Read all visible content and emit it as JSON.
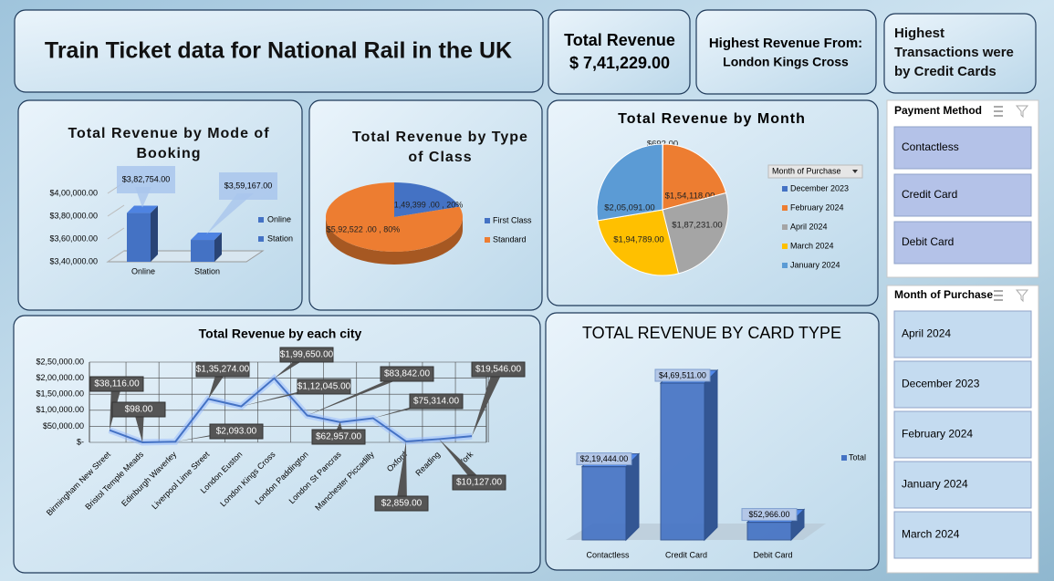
{
  "header": {
    "title": "Train Ticket data for National Rail in the UK"
  },
  "kpis": [
    {
      "label": "Total Revenue",
      "value": "$ 7,41,229.00"
    },
    {
      "label": "Highest Revenue From:",
      "value": "London Kings Cross"
    },
    {
      "label": "Highest Transactions were by Credit Cards"
    }
  ],
  "slicers": [
    {
      "title": "Payment Method",
      "items": [
        "Contactless",
        "Credit Card",
        "Debit Card"
      ]
    },
    {
      "title": "Month of Purchase",
      "items": [
        "April 2024",
        "December 2023",
        "February 2024",
        "January 2024",
        "March 2024"
      ]
    }
  ],
  "chart_data": [
    {
      "type": "bar",
      "title": "Total Revenue by Mode of Booking",
      "categories": [
        "Online",
        "Station"
      ],
      "series": [
        {
          "name": "Online",
          "color": "#4472c4",
          "values": [
            382754,
            null
          ],
          "value_labels": [
            "$3,82,754.00",
            null
          ]
        },
        {
          "name": "Station",
          "color": "#4472c4",
          "values": [
            null,
            359167
          ],
          "value_labels": [
            null,
            "$3,59,167.00"
          ]
        }
      ],
      "ylim": [
        340000,
        400000
      ],
      "yticks": [
        {
          "value": 340000,
          "label": "$3,40,000.00"
        },
        {
          "value": 360000,
          "label": "$3,60,000.00"
        },
        {
          "value": 380000,
          "label": "$3,80,000.00"
        },
        {
          "value": 400000,
          "label": "$4,00,000.00"
        }
      ],
      "legend": "right"
    },
    {
      "type": "pie",
      "title": "Total Revenue by Type of Class",
      "categories": [
        "First Class",
        "Standard"
      ],
      "values": [
        149399,
        592522
      ],
      "value_labels": [
        "$1,49,399 .00 , 20%",
        "$5,92,522 .00 , 80%"
      ],
      "colors": [
        "#4472c4",
        "#ed7d31"
      ],
      "legend": "right"
    },
    {
      "type": "pie",
      "title": "Total Revenue by Month",
      "legend_title": "Month of Purchase",
      "categories": [
        "December 2023",
        "February 2024",
        "April 2024",
        "March 2024",
        "January 2024"
      ],
      "values": [
        692,
        154118,
        187231,
        194789,
        205091
      ],
      "value_labels": [
        "$692.00",
        "$1,54,118.00",
        "$1,87,231.00",
        "$1,94,789.00",
        "$2,05,091.00"
      ],
      "colors": [
        "#4472c4",
        "#ed7d31",
        "#a5a5a5",
        "#ffc000",
        "#5b9bd5"
      ],
      "legend": "right"
    },
    {
      "type": "line",
      "title": "Total Revenue by each city",
      "categories": [
        "Birmingham New Street",
        "Bristol Temple Meads",
        "Edinburgh Waverley",
        "Liverpool Lime Street",
        "London Euston",
        "London Kings Cross",
        "London Paddington",
        "London St Pancras",
        "Manchester Piccadilly",
        "Oxford",
        "Reading",
        "York"
      ],
      "values": [
        38116,
        98,
        2093,
        135274,
        112045,
        199650,
        83842,
        62957,
        75314,
        2859,
        10127,
        19546
      ],
      "value_labels": [
        "$38,116.00",
        "$98.00",
        "$2,093.00",
        "$1,35,274.00",
        "$1,12,045.00",
        "$1,99,650.00",
        "$83,842.00",
        "$62,957.00",
        "$75,314.00",
        "$2,859.00",
        "$10,127.00",
        "$19,546.00"
      ],
      "color": "#4472c4",
      "ylim": [
        0,
        250000
      ],
      "yticks": [
        {
          "value": 0,
          "label": "$-"
        },
        {
          "value": 50000,
          "label": "$50,000.00"
        },
        {
          "value": 100000,
          "label": "$1,00,000.00"
        },
        {
          "value": 150000,
          "label": "$1,50,000.00"
        },
        {
          "value": 200000,
          "label": "$2,00,000.00"
        },
        {
          "value": 250000,
          "label": "$2,50,000.00"
        }
      ],
      "grid": true
    },
    {
      "type": "bar",
      "title": "TOTAL REVENUE BY CARD TYPE",
      "categories": [
        "Contactless",
        "Credit Card",
        "Debit Card"
      ],
      "series": [
        {
          "name": "Total",
          "color": "#4472c4",
          "values": [
            219444,
            469511,
            52966
          ],
          "value_labels": [
            "$2,19,444.00",
            "$4,69,511.00",
            "$52,966.00"
          ]
        }
      ],
      "legend": "right"
    }
  ]
}
